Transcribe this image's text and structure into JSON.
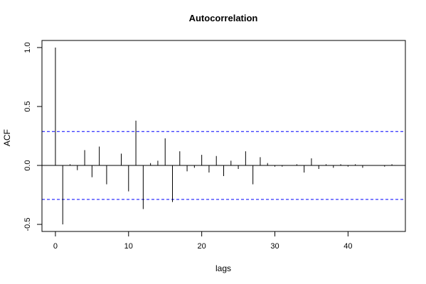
{
  "chart_data": {
    "type": "bar",
    "title": "Autocorrelation",
    "xlabel": "lags",
    "ylabel": "ACF",
    "xlim": [
      -1.84,
      47.84
    ],
    "ylim": [
      -0.56,
      1.06
    ],
    "xticks": [
      0,
      10,
      20,
      30,
      40
    ],
    "yticks": [
      -0.5,
      0.0,
      0.5,
      1.0
    ],
    "ytick_labels": [
      "-0.5",
      "0.0",
      "0.5",
      "1.0"
    ],
    "confidence_bounds": [
      0.288,
      -0.288
    ],
    "lags": [
      0,
      1,
      2,
      3,
      4,
      5,
      6,
      7,
      8,
      9,
      10,
      11,
      12,
      13,
      14,
      15,
      16,
      17,
      18,
      19,
      20,
      21,
      22,
      23,
      24,
      25,
      26,
      27,
      28,
      29,
      30,
      31,
      32,
      33,
      34,
      35,
      36,
      37,
      38,
      39,
      40,
      41,
      42,
      43,
      44,
      45,
      46
    ],
    "values": [
      1.0,
      -0.5,
      0.01,
      -0.04,
      0.13,
      -0.1,
      0.16,
      -0.16,
      0.0,
      0.1,
      -0.22,
      0.38,
      -0.37,
      0.02,
      0.04,
      0.23,
      -0.31,
      0.12,
      -0.05,
      -0.02,
      0.09,
      -0.06,
      0.08,
      -0.09,
      0.04,
      -0.03,
      0.12,
      -0.16,
      0.07,
      0.02,
      -0.01,
      -0.01,
      0.0,
      0.01,
      -0.06,
      0.06,
      -0.03,
      0.01,
      -0.02,
      0.01,
      -0.01,
      0.01,
      -0.02,
      0.0,
      0.0,
      -0.01,
      0.01
    ]
  },
  "style": {
    "bar_color": "#000000",
    "zero_line_color": "#000000",
    "confidence_color": "#0000ff",
    "box_color": "#000000"
  }
}
